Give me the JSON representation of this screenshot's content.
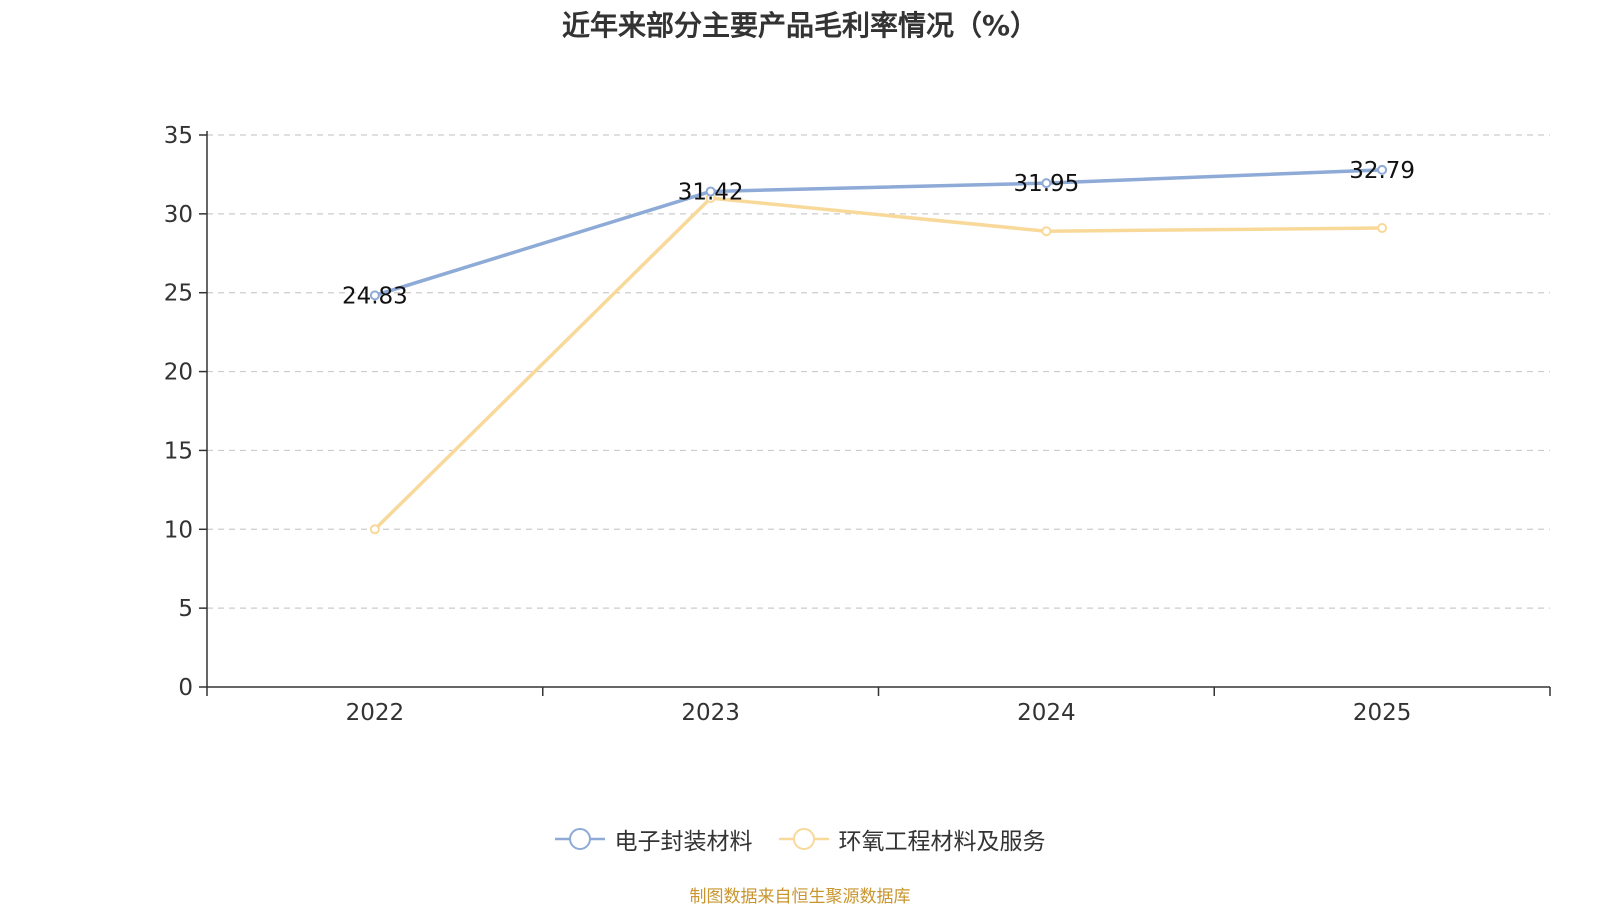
{
  "chart_data": {
    "type": "line",
    "title": "近年来部分主要产品毛利率情况（%）",
    "categories": [
      "2022",
      "2023",
      "2024",
      "2025"
    ],
    "ylim": [
      0,
      35
    ],
    "yticks": [
      0,
      5,
      10,
      15,
      20,
      25,
      30,
      35
    ],
    "grid": true,
    "legend_position": "bottom",
    "series": [
      {
        "name": "电子封装材料",
        "color": "#8eaad6",
        "values": [
          24.83,
          31.42,
          31.95,
          32.79
        ],
        "labels": [
          "24.83",
          "31.42",
          "31.95",
          "32.79"
        ]
      },
      {
        "name": "环氧工程材料及服务",
        "color": "#f8d99a",
        "values": [
          10.0,
          31.0,
          28.9,
          29.1
        ],
        "labels": []
      }
    ]
  },
  "source_note": "制图数据来自恒生聚源数据库"
}
